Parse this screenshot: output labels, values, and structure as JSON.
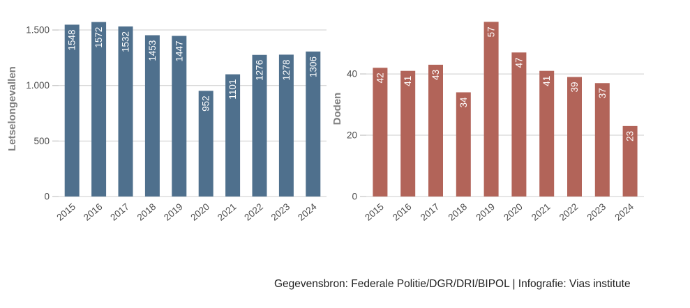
{
  "caption": "Gegevensbron: Federale Politie/DGR/DRI/BIPOL | Infografie: Vias institute",
  "colors": {
    "background": "#ffffff",
    "grid": "#cccccc",
    "axis_text": "#4d4d4d",
    "axis_title": "#808080",
    "value_label": "#ffffff",
    "caption_text": "#222222",
    "injuries_bar": "#4f708d",
    "deaths_bar": "#b26459"
  },
  "chart_data": [
    {
      "type": "bar",
      "title": "",
      "xlabel": "",
      "ylabel": "Letselongevallen",
      "categories": [
        "2015",
        "2016",
        "2017",
        "2018",
        "2019",
        "2020",
        "2021",
        "2022",
        "2023",
        "2024"
      ],
      "values": [
        1548,
        1572,
        1532,
        1453,
        1447,
        952,
        1101,
        1276,
        1278,
        1306
      ],
      "value_labels": [
        "1548",
        "1572",
        "1532",
        "1453",
        "1447",
        "952",
        "1101",
        "1276",
        "1278",
        "1306"
      ],
      "yticks": [
        {
          "v": 0,
          "label": "0"
        },
        {
          "v": 500,
          "label": "500"
        },
        {
          "v": 1000,
          "label": "1.000"
        },
        {
          "v": 1500,
          "label": "1.500"
        }
      ],
      "ylim": [
        0,
        1582
      ],
      "grid": true,
      "legend": "none",
      "bar_color": "#4f708d",
      "value_label_color": "#ffffff"
    },
    {
      "type": "bar",
      "title": "",
      "xlabel": "",
      "ylabel": "Doden",
      "categories": [
        "2015",
        "2016",
        "2017",
        "2018",
        "2019",
        "2020",
        "2021",
        "2022",
        "2023",
        "2024"
      ],
      "values": [
        42,
        41,
        43,
        34,
        57,
        47,
        41,
        39,
        37,
        23
      ],
      "value_labels": [
        "42",
        "41",
        "43",
        "34",
        "57",
        "47",
        "41",
        "39",
        "37",
        "23"
      ],
      "yticks": [
        {
          "v": 0,
          "label": "0"
        },
        {
          "v": 20,
          "label": "20"
        },
        {
          "v": 40,
          "label": "40"
        }
      ],
      "ylim": [
        0,
        57.3
      ],
      "grid": true,
      "legend": "none",
      "bar_color": "#b26459",
      "value_label_color": "#ffffff"
    }
  ]
}
